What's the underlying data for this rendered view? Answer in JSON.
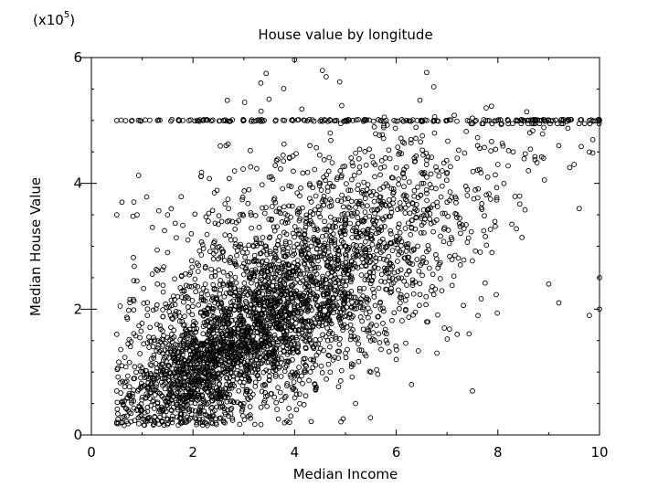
{
  "chart_data": {
    "type": "scatter",
    "title": "House value by longitude",
    "xlabel": "Median Income",
    "ylabel": "Median House Value",
    "y_multiplier_label": "(x10",
    "y_multiplier_exp": "5",
    "y_multiplier_close": ")",
    "xlim": [
      0,
      10
    ],
    "ylim": [
      0,
      6
    ],
    "x_ticks": [
      0,
      2,
      4,
      6,
      8,
      10
    ],
    "y_ticks": [
      0,
      2,
      4,
      6
    ],
    "grid": false,
    "marker": "open-circle",
    "marker_color": "#000000",
    "series": [
      {
        "points": [
          [
            0.5,
            5.0
          ],
          [
            0.8,
            5.0
          ],
          [
            1.3,
            5.0
          ],
          [
            1.8,
            5.0
          ],
          [
            2.2,
            5.0
          ],
          [
            2.6,
            5.0
          ],
          [
            3.0,
            5.0
          ],
          [
            3.4,
            5.0
          ],
          [
            3.8,
            5.0
          ],
          [
            4.2,
            5.0
          ],
          [
            4.6,
            5.0
          ],
          [
            5.0,
            5.0
          ],
          [
            5.4,
            5.0
          ],
          [
            5.8,
            5.0
          ],
          [
            6.2,
            5.0
          ],
          [
            6.6,
            5.0
          ],
          [
            7.0,
            5.0
          ],
          [
            7.4,
            5.0
          ],
          [
            7.8,
            5.0
          ],
          [
            8.2,
            5.0
          ],
          [
            8.6,
            5.0
          ],
          [
            9.0,
            5.0
          ],
          [
            9.4,
            5.0
          ],
          [
            9.8,
            5.0
          ],
          [
            10.0,
            5.0
          ],
          [
            0.5,
            3.5
          ],
          [
            0.6,
            3.7
          ],
          [
            0.9,
            3.5
          ],
          [
            1.2,
            3.3
          ],
          [
            1.5,
            3.5
          ],
          [
            0.5,
            1.6
          ],
          [
            0.6,
            1.1
          ],
          [
            0.5,
            0.7
          ],
          [
            0.5,
            0.2
          ],
          [
            0.7,
            0.3
          ],
          [
            1.0,
            0.6
          ],
          [
            1.2,
            0.9
          ],
          [
            1.4,
            1.3
          ],
          [
            1.3,
            0.5
          ],
          [
            1.6,
            0.8
          ],
          [
            1.8,
            1.1
          ],
          [
            1.7,
            0.4
          ],
          [
            2.0,
            0.6
          ],
          [
            2.1,
            1.2
          ],
          [
            2.3,
            0.9
          ],
          [
            2.4,
            1.5
          ],
          [
            2.6,
            1.0
          ],
          [
            2.8,
            1.3
          ],
          [
            2.9,
            0.7
          ],
          [
            3.0,
            1.8
          ],
          [
            3.2,
            1.4
          ],
          [
            3.3,
            2.1
          ],
          [
            3.5,
            1.6
          ],
          [
            3.6,
            1.1
          ],
          [
            3.8,
            2.4
          ],
          [
            3.9,
            1.9
          ],
          [
            4.1,
            2.2
          ],
          [
            4.2,
            1.5
          ],
          [
            4.4,
            2.6
          ],
          [
            4.5,
            2.0
          ],
          [
            4.7,
            2.8
          ],
          [
            4.8,
            2.3
          ],
          [
            5.0,
            3.0
          ],
          [
            5.1,
            2.5
          ],
          [
            5.3,
            3.2
          ],
          [
            5.4,
            2.7
          ],
          [
            5.6,
            3.4
          ],
          [
            5.7,
            2.9
          ],
          [
            5.9,
            3.6
          ],
          [
            6.0,
            3.1
          ],
          [
            6.2,
            3.8
          ],
          [
            6.3,
            3.3
          ],
          [
            6.5,
            4.0
          ],
          [
            6.6,
            3.5
          ],
          [
            6.8,
            4.2
          ],
          [
            7.0,
            3.7
          ],
          [
            7.2,
            4.4
          ],
          [
            7.4,
            3.9
          ],
          [
            7.6,
            4.6
          ],
          [
            7.8,
            4.1
          ],
          [
            8.0,
            4.3
          ],
          [
            8.3,
            4.5
          ],
          [
            8.6,
            4.2
          ],
          [
            8.9,
            4.4
          ],
          [
            9.2,
            4.6
          ],
          [
            9.5,
            4.3
          ],
          [
            9.8,
            4.5
          ],
          [
            9.6,
            3.6
          ],
          [
            9.8,
            1.9
          ],
          [
            10.0,
            2.0
          ],
          [
            10.0,
            2.5
          ],
          [
            9.0,
            2.4
          ],
          [
            9.2,
            2.1
          ],
          [
            7.5,
            0.7
          ],
          [
            7.2,
            1.6
          ],
          [
            6.8,
            1.3
          ],
          [
            6.6,
            1.8
          ],
          [
            6.3,
            0.8
          ],
          [
            6.0,
            1.2
          ],
          [
            5.8,
            1.5
          ],
          [
            5.5,
            1.0
          ],
          [
            5.2,
            0.5
          ],
          [
            5.0,
            1.3
          ],
          [
            4.7,
            1.0
          ],
          [
            4.4,
            0.8
          ],
          [
            4.1,
            0.5
          ],
          [
            3.9,
            0.2
          ],
          [
            3.6,
            0.6
          ],
          [
            3.3,
            0.9
          ],
          [
            3.0,
            0.5
          ],
          [
            2.7,
            0.3
          ],
          [
            2.5,
            0.6
          ],
          [
            2.2,
            0.8
          ],
          [
            1.9,
            0.6
          ],
          [
            1.6,
            0.3
          ],
          [
            1.1,
            1.9
          ],
          [
            1.3,
            2.4
          ],
          [
            1.5,
            2.9
          ],
          [
            1.7,
            2.2
          ],
          [
            1.9,
            3.1
          ],
          [
            2.1,
            2.6
          ],
          [
            2.3,
            3.4
          ],
          [
            2.5,
            2.8
          ],
          [
            2.7,
            3.6
          ],
          [
            2.9,
            3.0
          ],
          [
            3.1,
            3.9
          ],
          [
            3.3,
            3.3
          ],
          [
            3.5,
            4.1
          ],
          [
            3.7,
            3.6
          ],
          [
            3.9,
            4.4
          ],
          [
            4.1,
            3.8
          ],
          [
            4.3,
            4.6
          ],
          [
            4.5,
            4.0
          ],
          [
            4.7,
            4.8
          ],
          [
            4.9,
            4.2
          ]
        ],
        "density_clusters": [
          {
            "cx": 2.6,
            "cy": 1.3,
            "sx": 0.9,
            "sy": 0.55,
            "n": 900
          },
          {
            "cx": 3.6,
            "cy": 1.9,
            "sx": 1.1,
            "sy": 0.75,
            "n": 900
          },
          {
            "cx": 4.8,
            "cy": 2.6,
            "sx": 1.2,
            "sy": 0.85,
            "n": 650
          },
          {
            "cx": 6.0,
            "cy": 3.3,
            "sx": 1.1,
            "sy": 0.85,
            "n": 300
          },
          {
            "cx": 1.8,
            "cy": 0.9,
            "sx": 0.55,
            "sy": 0.4,
            "n": 400
          },
          {
            "cx": 3.2,
            "cy": 3.2,
            "sx": 1.3,
            "sy": 0.9,
            "n": 250
          }
        ]
      }
    ]
  }
}
